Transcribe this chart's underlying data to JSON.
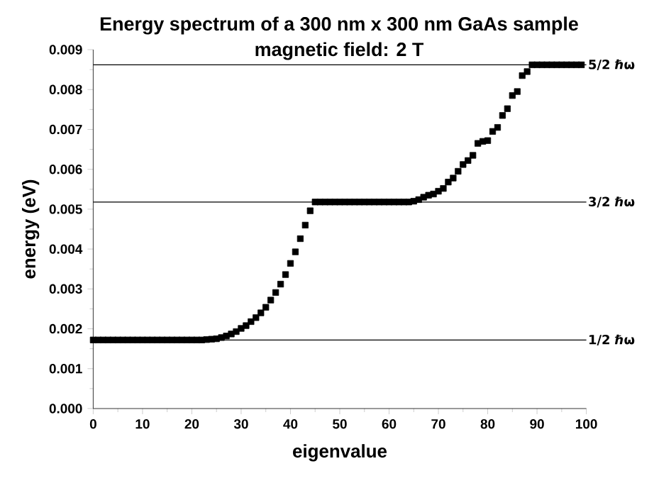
{
  "chart_data": {
    "type": "scatter",
    "title": "Energy spectrum of a 300 nm x 300 nm GaAs sample",
    "subtitle": "magnetic field: 2 T",
    "xlabel": "eigenvalue",
    "ylabel": "energy (eV)",
    "marker": "square",
    "x": [
      0,
      1,
      2,
      3,
      4,
      5,
      6,
      7,
      8,
      9,
      10,
      11,
      12,
      13,
      14,
      15,
      16,
      17,
      18,
      19,
      20,
      21,
      22,
      23,
      24,
      25,
      26,
      27,
      28,
      29,
      30,
      31,
      32,
      33,
      34,
      35,
      36,
      37,
      38,
      39,
      40,
      41,
      42,
      43,
      44,
      45,
      46,
      47,
      48,
      49,
      50,
      51,
      52,
      53,
      54,
      55,
      56,
      57,
      58,
      59,
      60,
      61,
      62,
      63,
      64,
      65,
      66,
      67,
      68,
      69,
      70,
      71,
      72,
      73,
      74,
      75,
      76,
      77,
      78,
      79,
      80,
      81,
      82,
      83,
      84,
      85,
      86,
      87,
      88,
      89,
      90,
      91,
      92,
      93,
      94,
      95,
      96,
      97,
      98,
      99
    ],
    "series": [
      {
        "color": "#000000",
        "values": [
          0.00172,
          0.00172,
          0.00172,
          0.00172,
          0.00172,
          0.00172,
          0.00172,
          0.00172,
          0.00172,
          0.00172,
          0.00172,
          0.00172,
          0.00172,
          0.00172,
          0.00172,
          0.00172,
          0.00172,
          0.00172,
          0.00172,
          0.00172,
          0.00172,
          0.00172,
          0.00172,
          0.00173,
          0.00174,
          0.00175,
          0.00178,
          0.00182,
          0.00187,
          0.00193,
          0.00201,
          0.00208,
          0.00218,
          0.00228,
          0.0024,
          0.00254,
          0.00272,
          0.00291,
          0.00312,
          0.00336,
          0.00364,
          0.00393,
          0.00426,
          0.0046,
          0.00496,
          0.00518,
          0.00518,
          0.00518,
          0.00518,
          0.00518,
          0.00518,
          0.00518,
          0.00518,
          0.00518,
          0.00518,
          0.00518,
          0.00518,
          0.00518,
          0.00518,
          0.00518,
          0.00518,
          0.00518,
          0.00518,
          0.00518,
          0.00518,
          0.0052,
          0.00524,
          0.0053,
          0.00535,
          0.00538,
          0.00545,
          0.00552,
          0.00568,
          0.00578,
          0.00595,
          0.00612,
          0.00622,
          0.00635,
          0.00665,
          0.0067,
          0.00672,
          0.00695,
          0.00705,
          0.00735,
          0.00752,
          0.00785,
          0.00795,
          0.00835,
          0.00845,
          0.00862,
          0.00862,
          0.00862,
          0.00862,
          0.00862,
          0.00862,
          0.00862,
          0.00862,
          0.00862,
          0.00862,
          0.00862
        ]
      }
    ],
    "xlim": [
      0,
      100
    ],
    "xticks": [
      0,
      10,
      20,
      30,
      40,
      50,
      60,
      70,
      80,
      90,
      100
    ],
    "ylim": [
      0,
      0.009
    ],
    "yticks": [
      {
        "value": 0,
        "label": "0.000"
      },
      {
        "value": 0.001,
        "label": "0.001"
      },
      {
        "value": 0.002,
        "label": "0.002"
      },
      {
        "value": 0.003,
        "label": "0.003"
      },
      {
        "value": 0.004,
        "label": "0.004"
      },
      {
        "value": 0.005,
        "label": "0.005"
      },
      {
        "value": 0.006,
        "label": "0.006"
      },
      {
        "value": 0.007,
        "label": "0.007"
      },
      {
        "value": 0.008,
        "label": "0.008"
      },
      {
        "value": 0.009,
        "label": "0.009"
      }
    ],
    "ref_lines": [
      {
        "axis": "y",
        "value": 0.00172,
        "label": "1/2 ℏω"
      },
      {
        "axis": "y",
        "value": 0.00518,
        "label": "3/2 ℏω"
      },
      {
        "axis": "y",
        "value": 0.00862,
        "label": "5/2 ℏω"
      }
    ]
  }
}
